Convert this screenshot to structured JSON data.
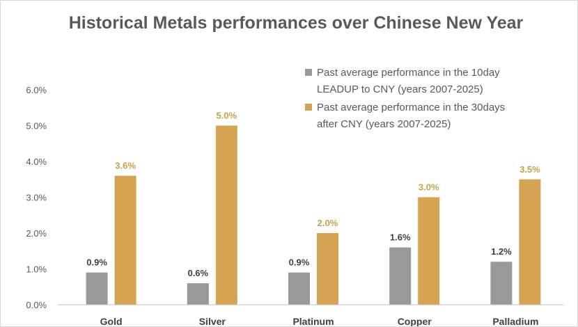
{
  "chart_data": {
    "type": "bar",
    "title": "Historical Metals performances over Chinese New Year",
    "categories": [
      "Gold",
      "Silver",
      "Platinum",
      "Copper",
      "Palladium"
    ],
    "series": [
      {
        "name": "Past average  performance in the 10day LEADUP to CNY (years 2007-2025)",
        "legend_lines": [
          "Past average  performance in the 10day",
          "LEADUP to CNY (years 2007-2025)"
        ],
        "color": "#999999",
        "values": [
          0.9,
          0.6,
          0.9,
          1.6,
          1.2
        ],
        "labels": [
          "0.9%",
          "0.6%",
          "0.9%",
          "1.6%",
          "1.2%"
        ]
      },
      {
        "name": "Past average performance in the 30days after CNY (years 2007-2025)",
        "legend_lines": [
          "Past average performance in the 30days",
          "after CNY (years 2007-2025)"
        ],
        "color": "#D4A452",
        "values": [
          3.6,
          5.0,
          2.0,
          3.0,
          3.5
        ],
        "labels": [
          "3.6%",
          "5.0%",
          "2.0%",
          "3.0%",
          "3.5%"
        ]
      }
    ],
    "yticks": [
      "0.0%",
      "1.0%",
      "2.0%",
      "3.0%",
      "4.0%",
      "5.0%",
      "6.0%"
    ],
    "ylim": [
      0,
      6
    ],
    "grid": false,
    "legend_position": "top-right",
    "axis_color": "#bfbfbf",
    "label_color_series1": "#404040",
    "label_color_series2": "#C9A04A"
  }
}
